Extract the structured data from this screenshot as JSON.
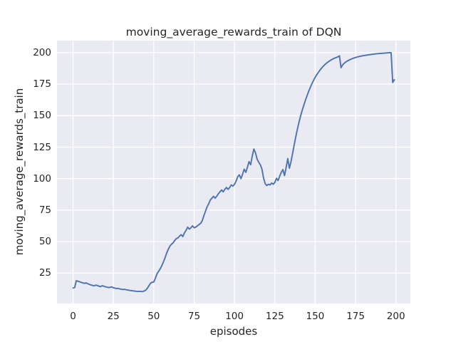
{
  "figure": {
    "title": "moving_average_rewards_train of DQN",
    "xlabel": "episodes",
    "ylabel": "moving_average_rewards_train"
  },
  "colors": {
    "figure_bg": "#ffffff",
    "axes_bg": "#eaeaf2",
    "grid": "#ffffff",
    "line": "#4c72b0",
    "text": "#262626"
  },
  "chart_data": {
    "type": "line",
    "title": "moving_average_rewards_train of DQN",
    "xlabel": "episodes",
    "ylabel": "moving_average_rewards_train",
    "grid": true,
    "legend": false,
    "xlim": [
      -9.95,
      208.95
    ],
    "ylim": [
      0.9,
      209.5
    ],
    "xticks": [
      0,
      25,
      50,
      75,
      100,
      125,
      150,
      175,
      200
    ],
    "yticks": [
      25,
      50,
      75,
      100,
      125,
      150,
      175,
      200
    ],
    "series": [
      {
        "name": "moving_average_rewards_train",
        "x_start": 0,
        "x_step": 1,
        "values": [
          13.2,
          13.6,
          19.0,
          18.6,
          18.2,
          17.7,
          17.3,
          16.9,
          17.3,
          16.7,
          16.1,
          15.7,
          15.3,
          14.9,
          15.5,
          15.2,
          14.7,
          14.3,
          15.0,
          14.7,
          14.2,
          13.9,
          13.6,
          13.8,
          14.1,
          13.4,
          13.1,
          12.8,
          12.9,
          12.5,
          12.2,
          12.0,
          12.2,
          11.8,
          11.6,
          11.3,
          11.2,
          11.0,
          10.8,
          10.6,
          10.5,
          10.6,
          10.5,
          10.4,
          10.8,
          11.5,
          13.0,
          15.0,
          17.0,
          17.8,
          18.0,
          21.0,
          24.5,
          26.5,
          28.5,
          31.0,
          34.0,
          37.3,
          41.0,
          44.0,
          46.5,
          48.0,
          49.0,
          51.0,
          52.5,
          53.0,
          54.5,
          55.5,
          54.0,
          57.0,
          59.0,
          61.5,
          60.0,
          61.0,
          62.5,
          61.0,
          61.5,
          62.5,
          63.5,
          64.5,
          66.5,
          70.5,
          74.0,
          77.5,
          80.0,
          83.0,
          84.5,
          86.0,
          84.5,
          86.0,
          88.0,
          89.5,
          91.0,
          89.5,
          91.5,
          93.0,
          91.5,
          93.0,
          95.0,
          94.0,
          95.5,
          98.0,
          101.5,
          103.0,
          100.0,
          103.5,
          107.5,
          105.0,
          109.0,
          113.5,
          111.0,
          118.0,
          123.5,
          120.5,
          115.5,
          113.0,
          111.0,
          107.5,
          100.5,
          96.0,
          94.5,
          95.5,
          95.0,
          96.5,
          95.5,
          97.0,
          100.3,
          98.5,
          102.0,
          105.0,
          107.2,
          102.4,
          109.0,
          115.9,
          108.2,
          113.5,
          120.0,
          127.0,
          133.5,
          139.5,
          145.0,
          150.0,
          154.5,
          158.5,
          162.5,
          166.0,
          169.5,
          172.5,
          175.5,
          178.0,
          180.5,
          182.5,
          184.4,
          186.2,
          187.8,
          189.2,
          190.5,
          191.6,
          192.6,
          193.5,
          194.3,
          195.0,
          195.6,
          196.1,
          196.6,
          197.4,
          188.0,
          190.3,
          191.6,
          192.6,
          193.4,
          194.1,
          194.7,
          195.2,
          195.7,
          196.1,
          196.5,
          196.8,
          197.1,
          197.4,
          197.6,
          197.8,
          198.0,
          198.2,
          198.4,
          198.6,
          198.8,
          198.9,
          199.1,
          199.2,
          199.3,
          199.4,
          199.5,
          199.6,
          199.7,
          199.8,
          199.9,
          199.9,
          176.3,
          178.5
        ]
      }
    ]
  }
}
